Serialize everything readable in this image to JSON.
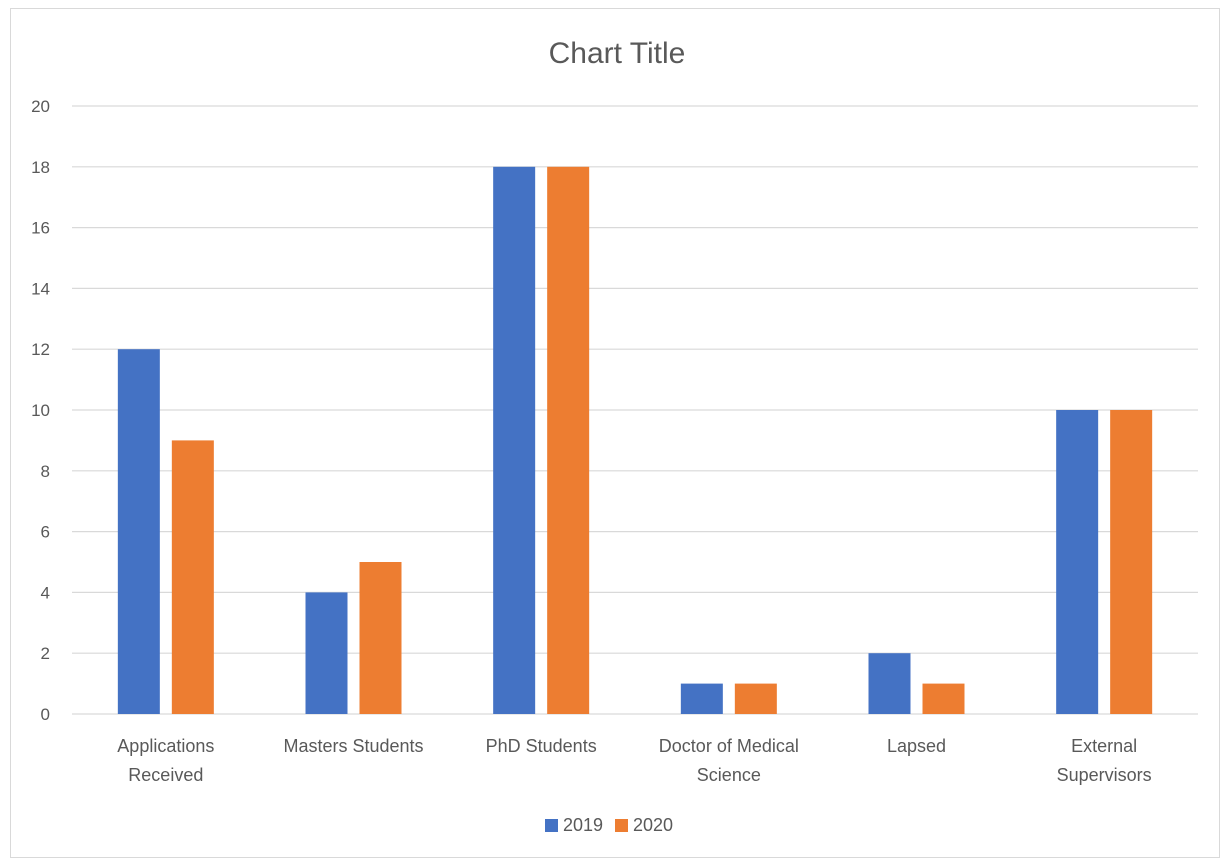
{
  "chart_data": {
    "type": "bar",
    "title": "Chart Title",
    "categories": [
      [
        "Applications",
        "Received"
      ],
      [
        "Masters Students"
      ],
      [
        "PhD Students"
      ],
      [
        "Doctor of Medical",
        "Science"
      ],
      [
        "Lapsed"
      ],
      [
        "External",
        "Supervisors"
      ]
    ],
    "series": [
      {
        "name": "2019",
        "color": "#4472c4",
        "values": [
          12,
          4,
          18,
          1,
          2,
          10
        ]
      },
      {
        "name": "2020",
        "color": "#ed7d31",
        "values": [
          9,
          5,
          18,
          1,
          1,
          10
        ]
      }
    ],
    "ylim": [
      0,
      20
    ],
    "yticks": [
      0,
      2,
      4,
      6,
      8,
      10,
      12,
      14,
      16,
      18,
      20
    ],
    "grid": true,
    "legend_position": "bottom"
  }
}
